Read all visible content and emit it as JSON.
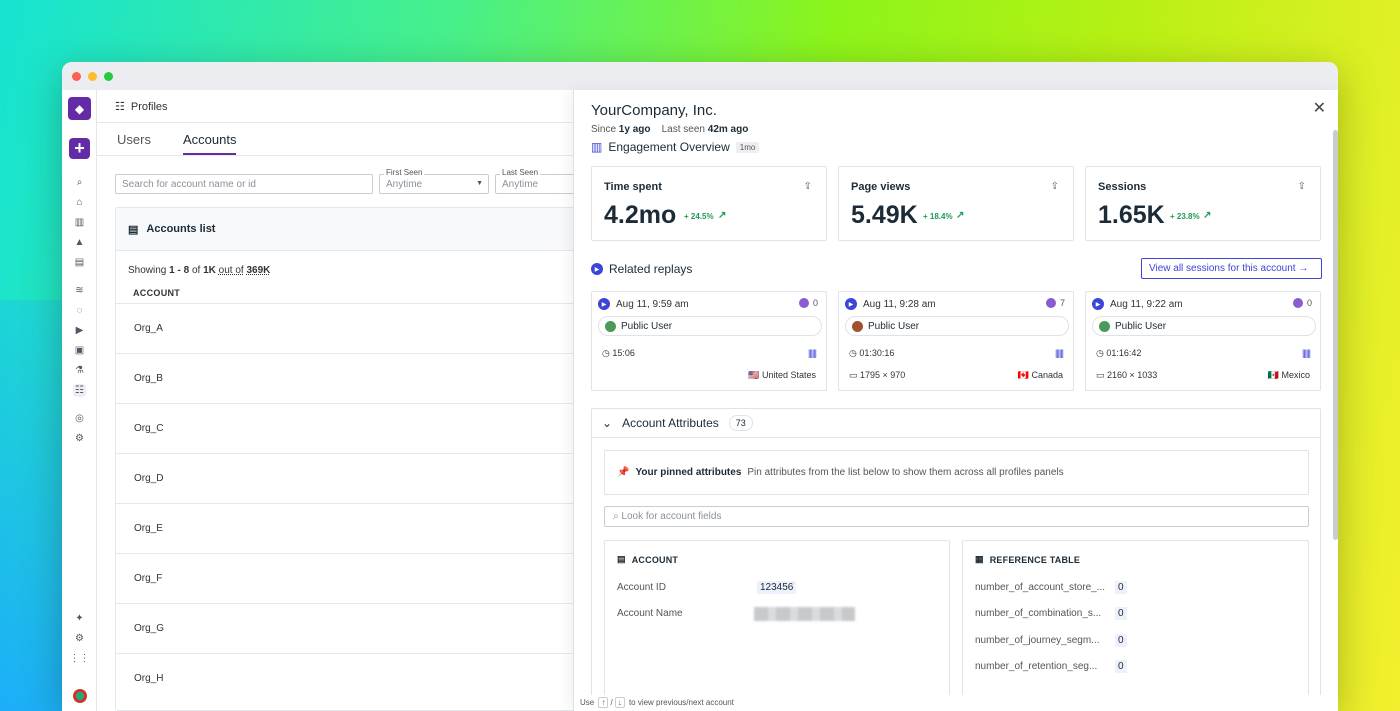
{
  "app": {
    "breadcrumb": "Profiles"
  },
  "tabs": [
    "Users",
    "Accounts"
  ],
  "filters": {
    "search_placeholder": "Search for account name or id",
    "first_seen_label": "First Seen",
    "first_seen_value": "Anytime",
    "last_seen_label": "Last Seen",
    "last_seen_value": "Anytime"
  },
  "accounts_list": {
    "title": "Accounts list",
    "showing_prefix": "Showing",
    "showing_range": "1 - 8",
    "showing_of": "of",
    "showing_count": "1K",
    "showing_out_of": "out of",
    "showing_total": "369K",
    "column": "ACCOUNT",
    "rows": [
      "Org_A",
      "Org_B",
      "Org_C",
      "Org_D",
      "Org_E",
      "Org_F",
      "Org_G",
      "Org_H"
    ]
  },
  "panel": {
    "title": "YourCompany, Inc.",
    "since_label": "Since",
    "since_value": "1y ago",
    "last_seen_label": "Last seen",
    "last_seen_value": "42m ago",
    "engagement_title": "Engagement Overview",
    "engagement_range": "1mo",
    "metrics": [
      {
        "title": "Time spent",
        "value": "4.2mo",
        "delta": "+ 24.5%"
      },
      {
        "title": "Page views",
        "value": "5.49K",
        "delta": "+ 18.4%"
      },
      {
        "title": "Sessions",
        "value": "1.65K",
        "delta": "+ 23.8%"
      }
    ],
    "related_title": "Related replays",
    "view_all": "View all sessions for this account",
    "replays": [
      {
        "time": "Aug 11, 9:59 am",
        "count": "0",
        "user": "Public User",
        "duration": "15:06",
        "bars": "||||||",
        "resolution": "",
        "country": "United States",
        "flag": "🇺🇸"
      },
      {
        "time": "Aug 11, 9:28 am",
        "count": "7",
        "user": "Public User",
        "duration": "01:30:16",
        "bars": "||||||",
        "resolution": "1795 × 970",
        "country": "Canada",
        "flag": "🇨🇦"
      },
      {
        "time": "Aug 11, 9:22 am",
        "count": "0",
        "user": "Public User",
        "duration": "01:16:42",
        "bars": "||||||",
        "resolution": "2160 × 1033",
        "country": "Mexico",
        "flag": "🇲🇽"
      }
    ],
    "attributes_title": "Account Attributes",
    "attributes_count": "73",
    "pinned_title": "Your pinned attributes",
    "pinned_desc": "Pin attributes from the list below to show them across all profiles panels",
    "field_search_placeholder": "Look for account fields",
    "account_box_title": "ACCOUNT",
    "account_id_label": "Account ID",
    "account_id_value": "123456",
    "account_name_label": "Account Name",
    "ref_box_title": "REFERENCE TABLE",
    "ref_rows": [
      {
        "key": "number_of_account_store_...",
        "value": "0"
      },
      {
        "key": "number_of_combination_s...",
        "value": "0"
      },
      {
        "key": "number_of_journey_segm...",
        "value": "0"
      },
      {
        "key": "number_of_retention_seg...",
        "value": "0"
      }
    ],
    "hint_use": "Use",
    "hint_up": "↑",
    "hint_slash": "/",
    "hint_down": "↓",
    "hint_text": "to view previous/next account"
  },
  "colors": {
    "brand": "#632ca6",
    "accent": "#3b45d6",
    "positive": "#1e9c55"
  }
}
